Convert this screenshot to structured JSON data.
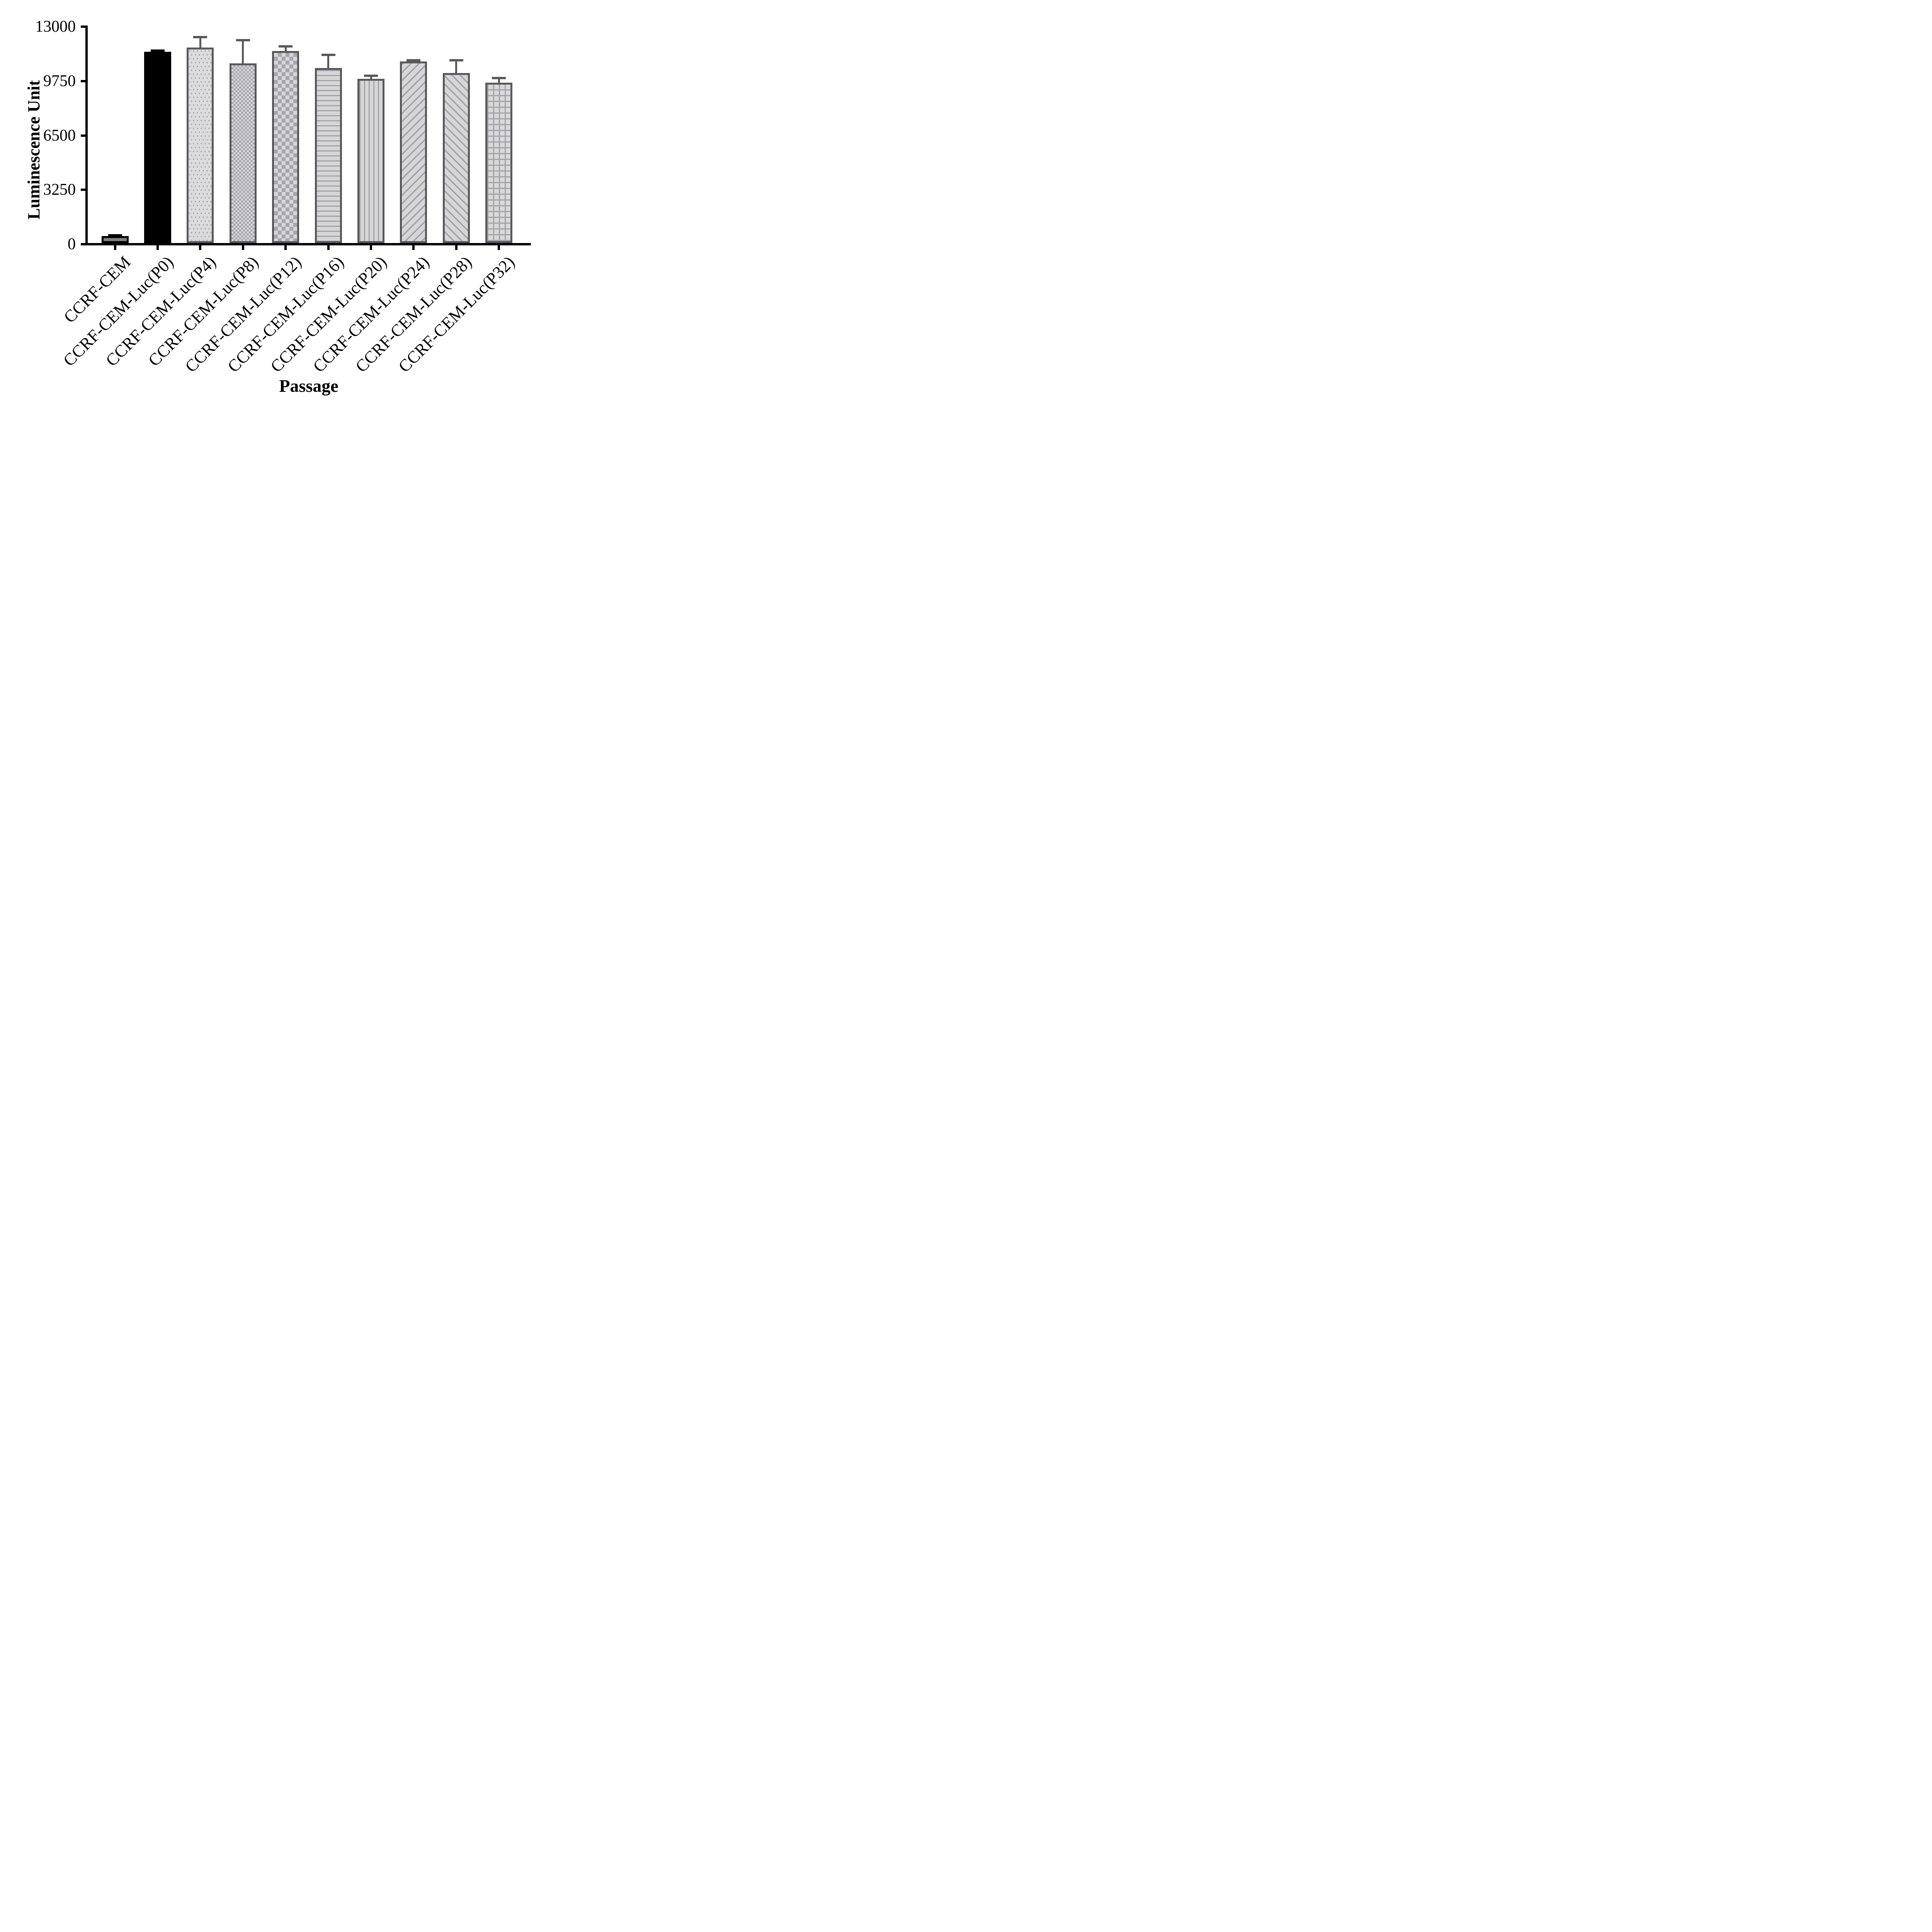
{
  "chart_data": {
    "type": "bar",
    "title": "",
    "xlabel": "Passage",
    "ylabel": "Luminescence Unit",
    "ylim": [
      0,
      13000
    ],
    "yticks": [
      0,
      3250,
      6500,
      9750,
      13000
    ],
    "grid": false,
    "legend": "none",
    "error_bars": "upper-only T caps",
    "categories": [
      "CCRF-CEM",
      "CCRF-CEM-Luc(P0)",
      "CCRF-CEM-Luc(P4)",
      "CCRF-CEM-Luc(P8)",
      "CCRF-CEM-Luc(P12)",
      "CCRF-CEM-Luc(P16)",
      "CCRF-CEM-Luc(P20)",
      "CCRF-CEM-Luc(P24)",
      "CCRF-CEM-Luc(P28)",
      "CCRF-CEM-Luc(P32)"
    ],
    "values": [
      480,
      11500,
      11750,
      10800,
      11540,
      10530,
      9880,
      10930,
      10220,
      9660
    ],
    "errors": [
      40,
      70,
      620,
      1400,
      280,
      790,
      180,
      70,
      780,
      270
    ],
    "bar_styles": [
      {
        "pattern": "solid-gray",
        "edge": "#000000"
      },
      {
        "pattern": "solid-black",
        "edge": "#000000"
      },
      {
        "pattern": "dots",
        "edge": "#59595b"
      },
      {
        "pattern": "checker-fine",
        "edge": "#59595b"
      },
      {
        "pattern": "checker-coarse",
        "edge": "#59595b"
      },
      {
        "pattern": "h-stripes",
        "edge": "#59595b"
      },
      {
        "pattern": "v-stripes",
        "edge": "#59595b"
      },
      {
        "pattern": "diag-forward",
        "edge": "#59595b"
      },
      {
        "pattern": "diag-back",
        "edge": "#59595b"
      },
      {
        "pattern": "grid",
        "edge": "#59595b"
      }
    ],
    "colors": {
      "axis": "#000000",
      "text": "#000000",
      "light_fill": "#d7d7d9",
      "pattern_gray": "#a2a2a8",
      "edge_dark": "#59595b",
      "solid_gray": "#7f7f7f",
      "solid_black": "#000000"
    }
  }
}
